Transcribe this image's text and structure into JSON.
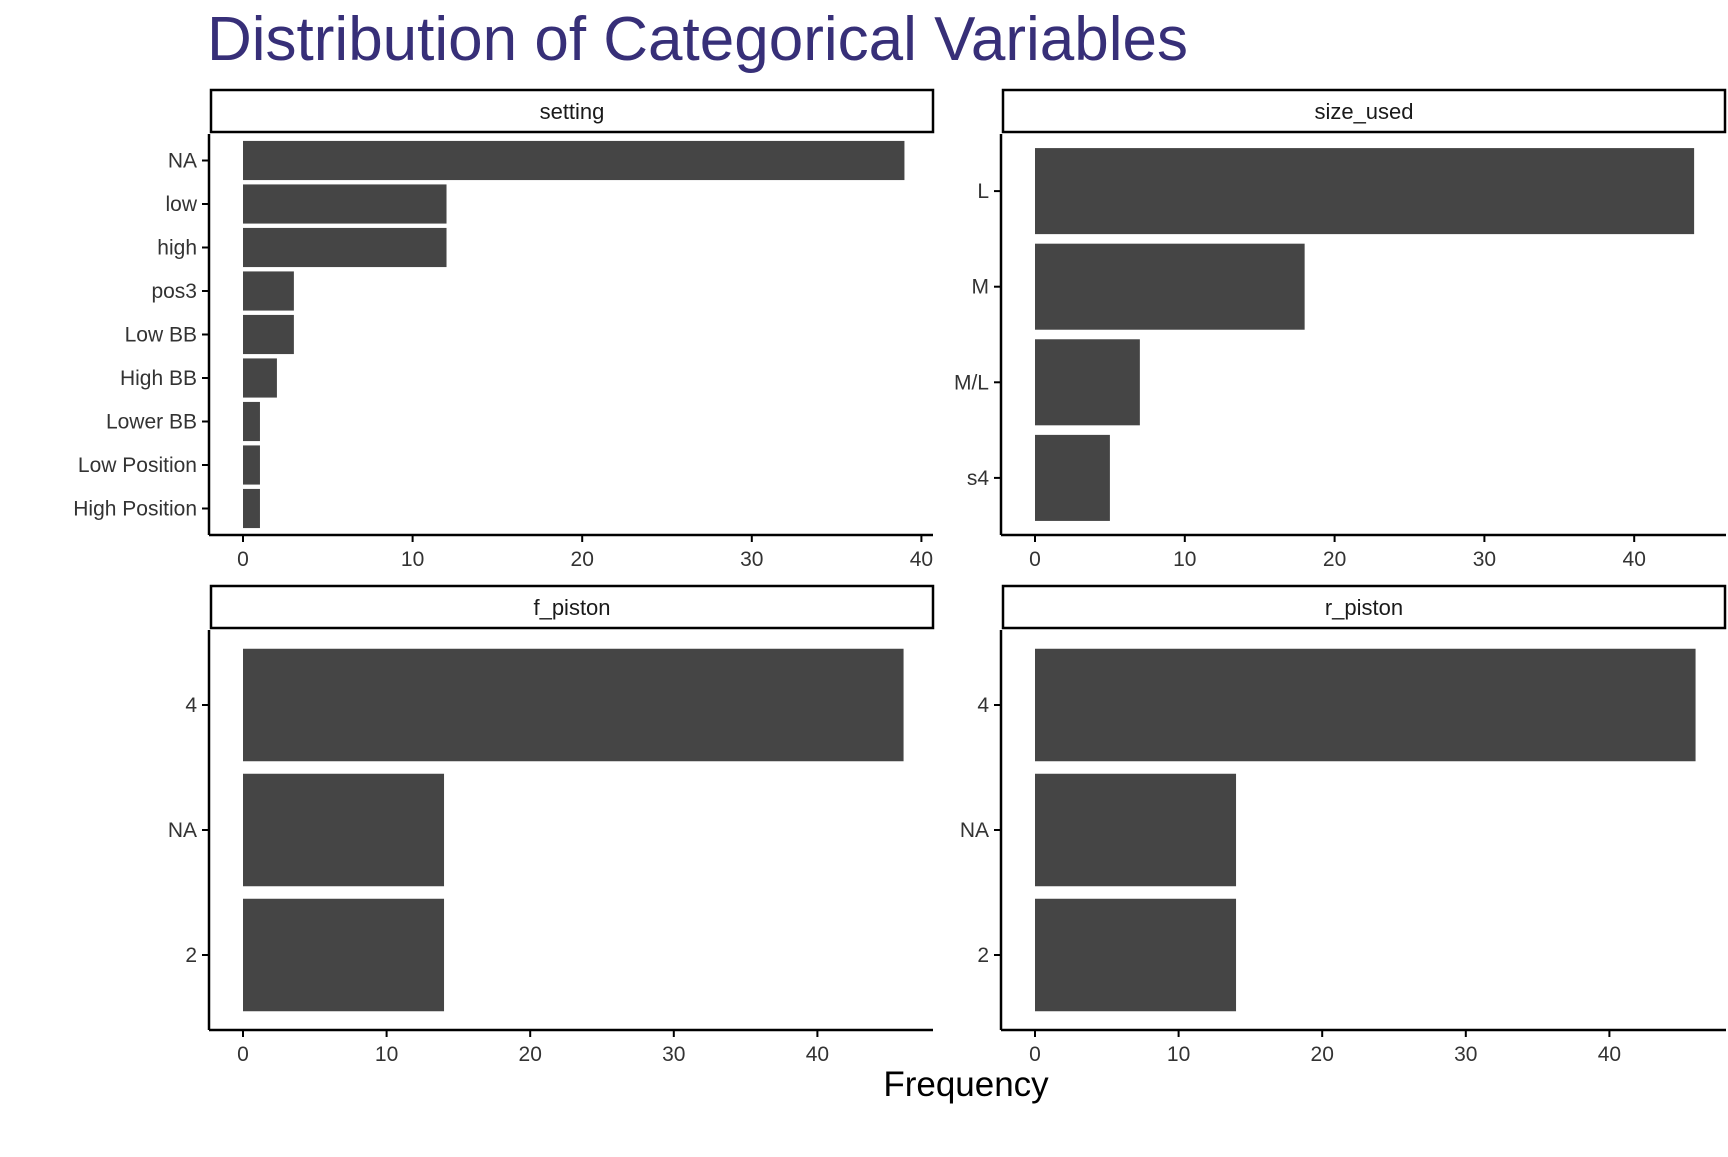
{
  "title": "Distribution of Categorical Variables",
  "xlabel": "Frequency",
  "colors": {
    "title": "#372F78",
    "bar": "#454545",
    "axis": "#000000",
    "tick_text": "#333333",
    "strip_fill": "#FFFFFF",
    "strip_border": "#000000",
    "background": "#FFFFFF"
  },
  "chart_data": [
    {
      "type": "bar",
      "orientation": "horizontal",
      "facet": "setting",
      "categories": [
        "NA",
        "low",
        "high",
        "pos3",
        "Low BB",
        "High BB",
        "Lower BB",
        "Low Position",
        "High Position"
      ],
      "values": [
        39,
        12,
        12,
        3,
        3,
        2,
        1,
        1,
        1
      ],
      "xlim": [
        0,
        41
      ],
      "xticks": [
        0,
        10,
        20,
        30,
        40
      ],
      "grid": false
    },
    {
      "type": "bar",
      "orientation": "horizontal",
      "facet": "size_used",
      "categories": [
        "L",
        "M",
        "M/L",
        "s4"
      ],
      "values": [
        44,
        18,
        7,
        5
      ],
      "xlim": [
        0,
        46.2
      ],
      "xticks": [
        0,
        10,
        20,
        30,
        40
      ],
      "grid": false
    },
    {
      "type": "bar",
      "orientation": "horizontal",
      "facet": "f_piston",
      "categories": [
        "4",
        "NA",
        "2"
      ],
      "values": [
        46,
        14,
        14
      ],
      "xlim": [
        0,
        48.3
      ],
      "xticks": [
        0,
        10,
        20,
        30,
        40
      ],
      "grid": false
    },
    {
      "type": "bar",
      "orientation": "horizontal",
      "facet": "r_piston",
      "categories": [
        "4",
        "NA",
        "2"
      ],
      "values": [
        46,
        14,
        14
      ],
      "xlim": [
        0,
        48.3
      ],
      "xticks": [
        0,
        10,
        20,
        30,
        40
      ],
      "grid": false
    }
  ]
}
